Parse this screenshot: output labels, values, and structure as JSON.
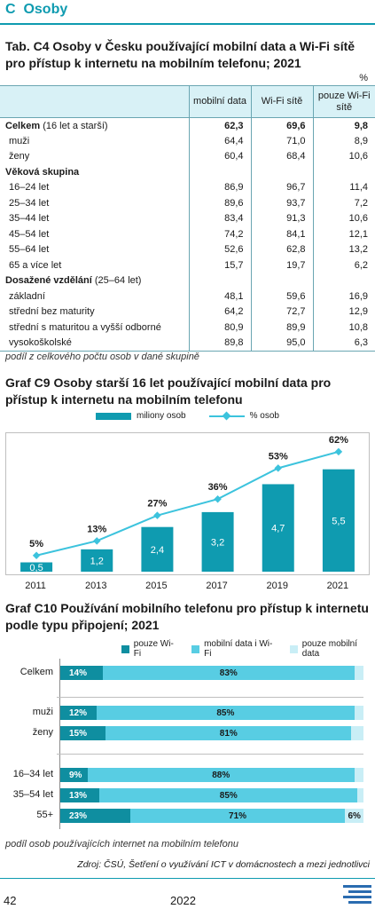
{
  "section": {
    "letter": "C",
    "title": "Osoby"
  },
  "table": {
    "title": "Tab. C4 Osoby v Česku používající mobilní data a Wi-Fi sítě pro přístup k internetu na mobilním telefonu; 2021",
    "unit": "%",
    "headers": [
      "mobilní data",
      "Wi-Fi sítě",
      "pouze Wi-Fi sítě"
    ],
    "rows": [
      {
        "label": "Celkem",
        "label_suffix": " (16 let a starší)",
        "values": [
          "62,3",
          "69,6",
          "9,8"
        ],
        "bold": true,
        "kind": "total"
      },
      {
        "label": "muži",
        "values": [
          "64,4",
          "71,0",
          "8,9"
        ],
        "kind": "item1"
      },
      {
        "label": "ženy",
        "values": [
          "60,4",
          "68,4",
          "10,6"
        ],
        "kind": "item1"
      },
      {
        "label": "Věková skupina",
        "values": [
          "",
          "",
          ""
        ],
        "kind": "group"
      },
      {
        "label": "16–24 let",
        "values": [
          "86,9",
          "96,7",
          "11,4"
        ],
        "kind": "item2"
      },
      {
        "label": "25–34 let",
        "values": [
          "89,6",
          "93,7",
          "7,2"
        ],
        "kind": "item2"
      },
      {
        "label": "35–44 let",
        "values": [
          "83,4",
          "91,3",
          "10,6"
        ],
        "kind": "item2"
      },
      {
        "label": "45–54 let",
        "values": [
          "74,2",
          "84,1",
          "12,1"
        ],
        "kind": "item2"
      },
      {
        "label": "55–64 let",
        "values": [
          "52,6",
          "62,8",
          "13,2"
        ],
        "kind": "item2"
      },
      {
        "label": "65 a více let",
        "values": [
          "15,7",
          "19,7",
          "6,2"
        ],
        "kind": "item2"
      },
      {
        "label": "Dosažené vzdělání",
        "label_suffix": " (25–64 let)",
        "values": [
          "",
          "",
          ""
        ],
        "kind": "group"
      },
      {
        "label": "základní",
        "values": [
          "48,1",
          "59,6",
          "16,9"
        ],
        "kind": "item2"
      },
      {
        "label": "střední bez maturity",
        "values": [
          "64,2",
          "72,7",
          "12,9"
        ],
        "kind": "item2"
      },
      {
        "label": "střední s maturitou a vyšší odborné",
        "values": [
          "80,9",
          "89,9",
          "10,8"
        ],
        "kind": "item2"
      },
      {
        "label": "vysokoškolské",
        "values": [
          "89,8",
          "95,0",
          "6,3"
        ],
        "kind": "item2"
      }
    ],
    "note": "podíl z celkového počtu osob v dané skupině"
  },
  "chart_data": [
    {
      "type": "bar",
      "title": "Graf C9 Osoby starší 16 let používající mobilní data pro přístup k internetu na mobilním telefonu",
      "categories": [
        "2011",
        "2013",
        "2015",
        "2017",
        "2019",
        "2021"
      ],
      "series": [
        {
          "name": "miliony osob",
          "type": "bar",
          "values": [
            0.5,
            1.2,
            2.4,
            3.2,
            4.7,
            5.5
          ],
          "labels": [
            "0,5",
            "1,2",
            "2,4",
            "3,2",
            "4,7",
            "5,5"
          ],
          "color": "#0f9bb0"
        },
        {
          "name": "% osob",
          "type": "line",
          "values": [
            5,
            13,
            27,
            36,
            53,
            62
          ],
          "labels": [
            "5%",
            "13%",
            "27%",
            "36%",
            "53%",
            "62%"
          ],
          "color": "#3cc3dd"
        }
      ],
      "legend": "top",
      "grid": false
    },
    {
      "type": "bar",
      "orientation": "horizontal-stacked",
      "title": "Graf C10 Používání mobilního telefonu pro přístup k internetu podle typu připojení; 2021",
      "categories": [
        "Celkem",
        "muži",
        "ženy",
        "16–34 let",
        "35–54 let",
        "55+"
      ],
      "series": [
        {
          "name": "pouze Wi-Fi",
          "values": [
            14,
            12,
            15,
            9,
            13,
            23
          ],
          "labels": [
            "14%",
            "12%",
            "15%",
            "9%",
            "13%",
            "23%"
          ],
          "color": "#0f8ea0"
        },
        {
          "name": "mobilní data i Wi-Fi",
          "values": [
            83,
            85,
            81,
            88,
            85,
            71
          ],
          "labels": [
            "83%",
            "85%",
            "81%",
            "88%",
            "85%",
            "71%"
          ],
          "color": "#58cde3"
        },
        {
          "name": "pouze mobilní data",
          "values": [
            3,
            3,
            4,
            3,
            2,
            6
          ],
          "labels": [
            "",
            "",
            "",
            "",
            "",
            "6%"
          ],
          "color": "#c9eef6"
        }
      ],
      "legend": "top",
      "note": "podíl osob používajících internet na mobilním telefonu"
    }
  ],
  "source": "Zdroj: ČSÚ, Šetření o využívání ICT v domácnostech a mezi jednotlivci",
  "footer": {
    "page": "42",
    "year": "2022"
  },
  "colors": {
    "accent": "#0f9bb0",
    "header_bg": "#d8f1f6"
  }
}
